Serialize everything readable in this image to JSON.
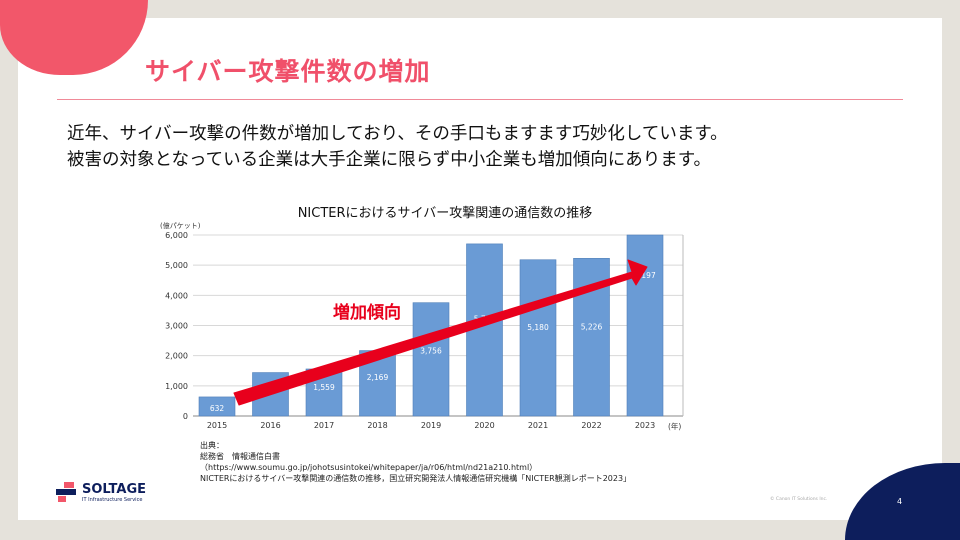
{
  "slide": {
    "title": "サイバー攻撃件数の増加",
    "body_lines": [
      "近年、サイバー攻撃の件数が増加しており、その手口もますます巧妙化しています。",
      "被害の対象となっている企業は大手企業に限らず中小企業も増加傾向にあります。"
    ],
    "source_lines": [
      "出典：",
      "総務省　情報通信白書",
      "（https://www.soumu.go.jp/johotsusintokei/whitepaper/ja/r06/html/nd21a210.html）",
      "NICTERにおけるサイバー攻撃関連の通信数の推移，国立研究開発法人情報通信研究機構「NICTER観測レポート2023」"
    ],
    "logo": {
      "name": "SOLTAGE",
      "tagline": "IT Infrastructure Service"
    },
    "copyright": "© Canon IT Solutions Inc.",
    "page_number": "4",
    "colors": {
      "accent": "#f0506a",
      "navy": "#0d1e5c",
      "bar": "#6a9bd5",
      "arrow": "#e8001c"
    }
  },
  "chart_data": {
    "type": "bar",
    "title": "NICTERにおけるサイバー攻撃関連の通信数の推移",
    "ylabel": "(億パケット)",
    "xlabel": "(年)",
    "categories": [
      "2015",
      "2016",
      "2017",
      "2018",
      "2019",
      "2020",
      "2021",
      "2022",
      "2023"
    ],
    "values": [
      632,
      1440,
      1559,
      2169,
      3756,
      5705,
      5180,
      5226,
      6197
    ],
    "value_labels": [
      "632",
      "1,440",
      "1,559",
      "2,169",
      "3,756",
      "5,705",
      "5,180",
      "5,226",
      "6,197"
    ],
    "ylim": [
      0,
      6000
    ],
    "yticks": [
      0,
      1000,
      2000,
      3000,
      4000,
      5000,
      6000
    ],
    "ytick_labels": [
      "0",
      "1,000",
      "2,000",
      "3,000",
      "4,000",
      "5,000",
      "6,000"
    ],
    "grid": true,
    "annotation": "増加傾向"
  }
}
